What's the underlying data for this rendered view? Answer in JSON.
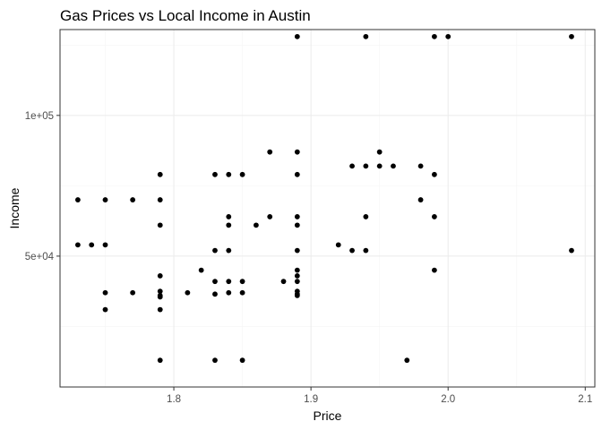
{
  "chart_data": {
    "type": "scatter",
    "title": "Gas Prices vs Local Income in Austin",
    "xlabel": "Price",
    "ylabel": "Income",
    "xlim": [
      1.717,
      2.107
    ],
    "ylim": [
      3500,
      130500
    ],
    "x_ticks": [
      1.8,
      1.9,
      2.0,
      2.1
    ],
    "x_tick_labels": [
      "1.8",
      "1.9",
      "2.0",
      "2.1"
    ],
    "y_ticks": [
      50000,
      100000
    ],
    "y_tick_labels": [
      "5e+04",
      "1e+05"
    ],
    "x_minor_ticks": [
      1.75,
      1.85,
      1.95,
      2.05
    ],
    "y_minor_ticks": [
      25000,
      75000,
      125000
    ],
    "grid": true,
    "point_color": "#000000",
    "points": [
      {
        "x": 1.73,
        "y": 70000
      },
      {
        "x": 1.73,
        "y": 54000
      },
      {
        "x": 1.74,
        "y": 54000
      },
      {
        "x": 1.75,
        "y": 70000
      },
      {
        "x": 1.75,
        "y": 54000
      },
      {
        "x": 1.75,
        "y": 37000
      },
      {
        "x": 1.75,
        "y": 31000
      },
      {
        "x": 1.77,
        "y": 70000
      },
      {
        "x": 1.77,
        "y": 37000
      },
      {
        "x": 1.79,
        "y": 79000
      },
      {
        "x": 1.79,
        "y": 70000
      },
      {
        "x": 1.79,
        "y": 61000
      },
      {
        "x": 1.79,
        "y": 43000
      },
      {
        "x": 1.79,
        "y": 37500
      },
      {
        "x": 1.79,
        "y": 36000
      },
      {
        "x": 1.79,
        "y": 35500
      },
      {
        "x": 1.79,
        "y": 31000
      },
      {
        "x": 1.79,
        "y": 13000
      },
      {
        "x": 1.81,
        "y": 37000
      },
      {
        "x": 1.82,
        "y": 45000
      },
      {
        "x": 1.83,
        "y": 79000
      },
      {
        "x": 1.83,
        "y": 52000
      },
      {
        "x": 1.83,
        "y": 41000
      },
      {
        "x": 1.83,
        "y": 36500
      },
      {
        "x": 1.83,
        "y": 13000
      },
      {
        "x": 1.84,
        "y": 79000
      },
      {
        "x": 1.84,
        "y": 64000
      },
      {
        "x": 1.84,
        "y": 61000
      },
      {
        "x": 1.84,
        "y": 52000
      },
      {
        "x": 1.84,
        "y": 41000
      },
      {
        "x": 1.84,
        "y": 37000
      },
      {
        "x": 1.85,
        "y": 79000
      },
      {
        "x": 1.85,
        "y": 41000
      },
      {
        "x": 1.85,
        "y": 37000
      },
      {
        "x": 1.85,
        "y": 13000
      },
      {
        "x": 1.86,
        "y": 61000
      },
      {
        "x": 1.87,
        "y": 87000
      },
      {
        "x": 1.87,
        "y": 64000
      },
      {
        "x": 1.88,
        "y": 41000
      },
      {
        "x": 1.89,
        "y": 128000
      },
      {
        "x": 1.89,
        "y": 87000
      },
      {
        "x": 1.89,
        "y": 79000
      },
      {
        "x": 1.89,
        "y": 64000
      },
      {
        "x": 1.89,
        "y": 61000
      },
      {
        "x": 1.89,
        "y": 52000
      },
      {
        "x": 1.89,
        "y": 45000
      },
      {
        "x": 1.89,
        "y": 43000
      },
      {
        "x": 1.89,
        "y": 41000
      },
      {
        "x": 1.89,
        "y": 37500
      },
      {
        "x": 1.89,
        "y": 36500
      },
      {
        "x": 1.89,
        "y": 36000
      },
      {
        "x": 1.92,
        "y": 54000
      },
      {
        "x": 1.93,
        "y": 82000
      },
      {
        "x": 1.93,
        "y": 52000
      },
      {
        "x": 1.94,
        "y": 128000
      },
      {
        "x": 1.94,
        "y": 82000
      },
      {
        "x": 1.94,
        "y": 64000
      },
      {
        "x": 1.94,
        "y": 52000
      },
      {
        "x": 1.95,
        "y": 87000
      },
      {
        "x": 1.95,
        "y": 82000
      },
      {
        "x": 1.96,
        "y": 82000
      },
      {
        "x": 1.97,
        "y": 13000
      },
      {
        "x": 1.98,
        "y": 82000
      },
      {
        "x": 1.98,
        "y": 70000
      },
      {
        "x": 1.99,
        "y": 128000
      },
      {
        "x": 1.99,
        "y": 79000
      },
      {
        "x": 1.99,
        "y": 64000
      },
      {
        "x": 1.99,
        "y": 45000
      },
      {
        "x": 2.0,
        "y": 128000
      },
      {
        "x": 2.09,
        "y": 128000
      },
      {
        "x": 2.09,
        "y": 52000
      }
    ]
  }
}
